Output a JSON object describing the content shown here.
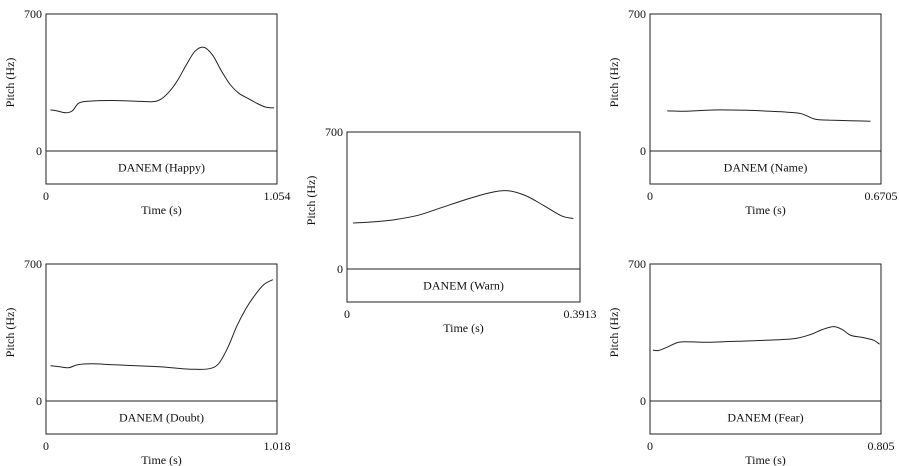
{
  "chart_data": [
    {
      "type": "line",
      "tier_label": "DANEM (Happy)",
      "xlabel": "Time (s)",
      "ylabel": "Pitch (Hz)",
      "xlim": [
        0,
        1.054
      ],
      "ylim": [
        0,
        700
      ],
      "x_tick_labels": [
        "0",
        "1.054"
      ],
      "y_tick_labels": [
        "0",
        "700"
      ],
      "series": [
        {
          "x": [
            0.02,
            0.05,
            0.09,
            0.12,
            0.15,
            0.2,
            0.3,
            0.4,
            0.48,
            0.52,
            0.56,
            0.6,
            0.64,
            0.68,
            0.72,
            0.76,
            0.8,
            0.84,
            0.88,
            0.92,
            0.96,
            1.0,
            1.04
          ],
          "y": [
            210,
            205,
            195,
            205,
            245,
            255,
            258,
            255,
            252,
            262,
            300,
            360,
            440,
            510,
            530,
            490,
            410,
            340,
            295,
            270,
            245,
            225,
            220
          ]
        }
      ]
    },
    {
      "type": "line",
      "tier_label": "DANEM (Doubt)",
      "xlabel": "Time (s)",
      "ylabel": "Pitch (Hz)",
      "xlim": [
        0,
        1.018
      ],
      "ylim": [
        0,
        700
      ],
      "x_tick_labels": [
        "0",
        "1.018"
      ],
      "y_tick_labels": [
        "0",
        "700"
      ],
      "series": [
        {
          "x": [
            0.02,
            0.06,
            0.1,
            0.14,
            0.2,
            0.3,
            0.4,
            0.5,
            0.6,
            0.66,
            0.72,
            0.76,
            0.8,
            0.84,
            0.88,
            0.92,
            0.96,
            1.0
          ],
          "y": [
            180,
            175,
            170,
            185,
            190,
            185,
            180,
            175,
            165,
            162,
            165,
            190,
            270,
            380,
            470,
            540,
            595,
            620
          ]
        }
      ]
    },
    {
      "type": "line",
      "tier_label": "DANEM (Warn)",
      "xlabel": "Time (s)",
      "ylabel": "Pitch (Hz)",
      "xlim": [
        0,
        0.3913
      ],
      "ylim": [
        0,
        700
      ],
      "x_tick_labels": [
        "0",
        "0.3913"
      ],
      "y_tick_labels": [
        "0",
        "700"
      ],
      "series": [
        {
          "x": [
            0.01,
            0.04,
            0.08,
            0.12,
            0.16,
            0.2,
            0.24,
            0.27,
            0.3,
            0.33,
            0.36,
            0.38
          ],
          "y": [
            235,
            240,
            252,
            275,
            315,
            355,
            390,
            400,
            375,
            325,
            272,
            258
          ]
        }
      ]
    },
    {
      "type": "line",
      "tier_label": "DANEM (Name)",
      "xlabel": "Time (s)",
      "ylabel": "Pitch (Hz)",
      "xlim": [
        0,
        0.6705
      ],
      "ylim": [
        0,
        700
      ],
      "x_tick_labels": [
        "0",
        "0.6705"
      ],
      "y_tick_labels": [
        "0",
        "700"
      ],
      "series": [
        {
          "x": [
            0.05,
            0.1,
            0.15,
            0.2,
            0.28,
            0.35,
            0.4,
            0.44,
            0.48,
            0.52,
            0.58,
            0.64
          ],
          "y": [
            205,
            203,
            207,
            210,
            208,
            203,
            198,
            190,
            162,
            158,
            155,
            152
          ]
        }
      ]
    },
    {
      "type": "line",
      "tier_label": "DANEM (Fear)",
      "xlabel": "Time (s)",
      "ylabel": "Pitch (Hz)",
      "xlim": [
        0,
        0.805
      ],
      "ylim": [
        0,
        700
      ],
      "x_tick_labels": [
        "0",
        "0.805"
      ],
      "y_tick_labels": [
        "0",
        "700"
      ],
      "series": [
        {
          "x": [
            0.01,
            0.03,
            0.06,
            0.1,
            0.15,
            0.2,
            0.3,
            0.4,
            0.5,
            0.56,
            0.6,
            0.64,
            0.67,
            0.7,
            0.74,
            0.78,
            0.8
          ],
          "y": [
            260,
            258,
            275,
            300,
            302,
            300,
            305,
            310,
            318,
            340,
            365,
            380,
            365,
            335,
            325,
            310,
            290
          ]
        }
      ]
    }
  ]
}
